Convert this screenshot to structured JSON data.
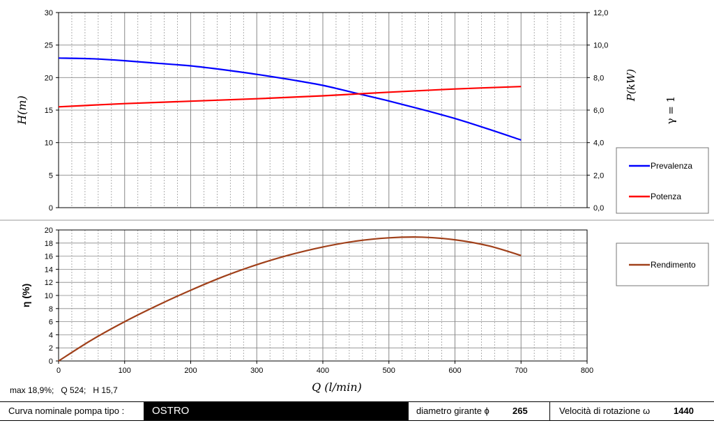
{
  "chart_data": [
    {
      "type": "line",
      "xlabel": "Q  (l/min)",
      "xlim": [
        0,
        800
      ],
      "x_ticks": [
        0,
        100,
        200,
        300,
        400,
        500,
        600,
        700,
        800
      ],
      "ylabel": "H(m)",
      "ylim": [
        0,
        30
      ],
      "y_ticks": [
        "0",
        "5",
        "10",
        "15",
        "20",
        "25",
        "30"
      ],
      "y2label": "P(kW)",
      "y2lim": [
        0,
        12
      ],
      "y2_ticks": [
        "0,0",
        "2,0",
        "4,0",
        "6,0",
        "8,0",
        "10,0",
        "12,0"
      ],
      "side_text": "γ = 1",
      "grid": true,
      "legend": "right",
      "series": [
        {
          "name": "Prevalenza",
          "color": "#0000ff",
          "axis": "left",
          "points": [
            [
              0,
              23.0
            ],
            [
              50,
              22.9
            ],
            [
              100,
              22.6
            ],
            [
              150,
              22.2
            ],
            [
              200,
              21.8
            ],
            [
              250,
              21.2
            ],
            [
              300,
              20.5
            ],
            [
              350,
              19.7
            ],
            [
              400,
              18.8
            ],
            [
              450,
              17.6
            ],
            [
              500,
              16.4
            ],
            [
              550,
              15.1
            ],
            [
              600,
              13.7
            ],
            [
              650,
              12.1
            ],
            [
              700,
              10.4
            ]
          ]
        },
        {
          "name": "Potenza",
          "color": "#ff0000",
          "axis": "right",
          "points": [
            [
              0,
              6.2
            ],
            [
              100,
              6.4
            ],
            [
              200,
              6.55
            ],
            [
              300,
              6.7
            ],
            [
              400,
              6.88
            ],
            [
              500,
              7.1
            ],
            [
              600,
              7.3
            ],
            [
              700,
              7.45
            ]
          ]
        }
      ]
    },
    {
      "type": "line",
      "xlabel": "",
      "xlim": [
        0,
        800
      ],
      "x_ticks": [
        0,
        100,
        200,
        300,
        400,
        500,
        600,
        700,
        800
      ],
      "ylabel": "η (%)",
      "ylim": [
        0,
        20
      ],
      "y_ticks": [
        0,
        2,
        4,
        6,
        8,
        10,
        12,
        14,
        16,
        18,
        20
      ],
      "grid": true,
      "legend": "right",
      "series": [
        {
          "name": "Rendimento",
          "color": "#a0401a",
          "axis": "left",
          "points": [
            [
              0,
              0
            ],
            [
              50,
              3.2
            ],
            [
              100,
              6.0
            ],
            [
              150,
              8.5
            ],
            [
              200,
              10.8
            ],
            [
              250,
              12.9
            ],
            [
              300,
              14.7
            ],
            [
              350,
              16.2
            ],
            [
              400,
              17.4
            ],
            [
              450,
              18.3
            ],
            [
              500,
              18.8
            ],
            [
              550,
              18.9
            ],
            [
              600,
              18.5
            ],
            [
              650,
              17.6
            ],
            [
              700,
              16.1
            ]
          ]
        }
      ]
    }
  ],
  "note": "max 18,9%;   Q 524;   H 15,7",
  "footer": {
    "label": "Curva nominale pompa tipo :",
    "pump": "OSTRO",
    "diam_label": "diametro girante  ϕ",
    "diam_value": "265",
    "speed_label": "Velocità di rotazione  ω",
    "speed_value": "1440"
  }
}
